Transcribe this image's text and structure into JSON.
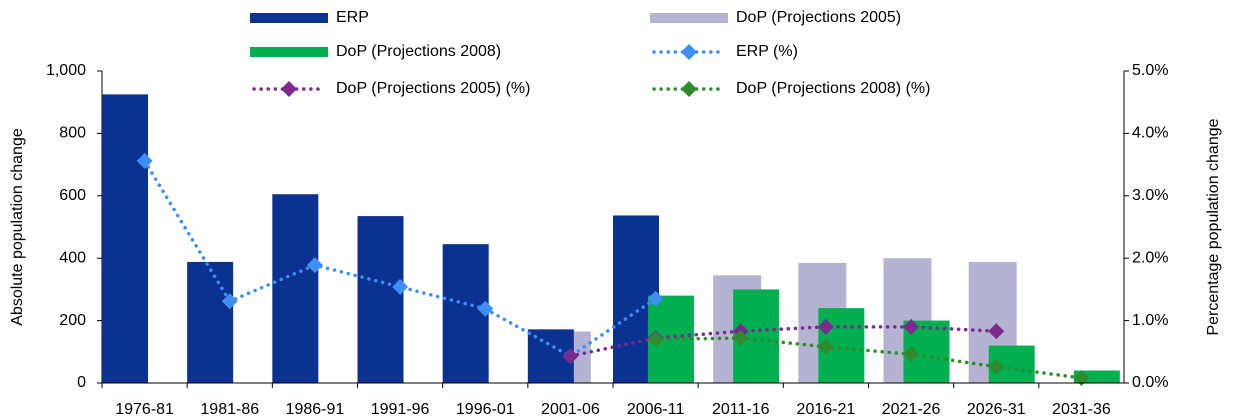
{
  "chart_data": {
    "type": "bar-line",
    "y_label": "Absolute population change",
    "y2_label": "Percentage population change",
    "categories": [
      "1976-81",
      "1981-86",
      "1986-91",
      "1991-96",
      "1996-01",
      "2001-06",
      "2006-11",
      "2011-16",
      "2016-21",
      "2021-26",
      "2026-31",
      "2031-36"
    ],
    "series": [
      {
        "name": "ERP",
        "type": "bar",
        "color": "#0b3290",
        "values": [
          925,
          388,
          605,
          535,
          445,
          172,
          537,
          null,
          null,
          null,
          null,
          null
        ]
      },
      {
        "name": "DoP (Projections 2005)",
        "type": "bar",
        "color": "#b4b4d2",
        "values": [
          null,
          null,
          null,
          null,
          null,
          165,
          280,
          345,
          385,
          400,
          388,
          null
        ]
      },
      {
        "name": "DoP (Projections 2008)",
        "type": "bar",
        "color": "#00b050",
        "values": [
          null,
          null,
          null,
          null,
          null,
          null,
          280,
          300,
          240,
          200,
          120,
          40
        ]
      },
      {
        "name": "ERP (%)",
        "type": "line",
        "axis": "y2",
        "color": "#3d8ef5",
        "values": [
          3.56,
          1.31,
          1.89,
          1.54,
          1.19,
          0.43,
          1.35,
          null,
          null,
          null,
          null,
          null
        ]
      },
      {
        "name": "DoP (Projections 2005) (%)",
        "type": "line",
        "axis": "y2",
        "color": "#7b2a8e",
        "values": [
          null,
          null,
          null,
          null,
          null,
          0.43,
          0.72,
          0.83,
          0.9,
          0.9,
          0.83,
          null
        ]
      },
      {
        "name": "DoP (Projections 2008) (%)",
        "type": "line",
        "axis": "y2",
        "color": "#2e8b2e",
        "values": [
          null,
          null,
          null,
          null,
          null,
          null,
          0.7,
          0.72,
          0.58,
          0.46,
          0.26,
          0.08
        ]
      }
    ],
    "ylim": [
      0,
      1000
    ],
    "yticks": [
      0,
      200,
      400,
      600,
      800,
      {
        "value": 1000,
        "label": "1,000"
      }
    ],
    "y2lim": [
      0,
      5
    ],
    "y2ticks": [
      {
        "value": 0,
        "label": "0.0%"
      },
      {
        "value": 1,
        "label": "1.0%"
      },
      {
        "value": 2,
        "label": "2.0%"
      },
      {
        "value": 3,
        "label": "3.0%"
      },
      {
        "value": 4,
        "label": "4.0%"
      },
      {
        "value": 5,
        "label": "5.0%"
      }
    ]
  }
}
